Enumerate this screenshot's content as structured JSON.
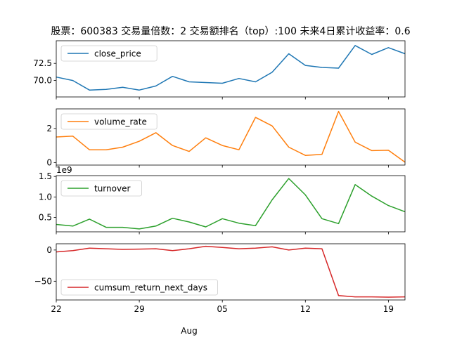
{
  "title": "股票：600383  交易量倍数：2 交易额排名（top）:100 未来4日累计收益率：0.6",
  "x_month_label": "Aug",
  "x_tick_labels": [
    "22",
    "29",
    "05",
    "12",
    "19"
  ],
  "x_tick_index": [
    0,
    5,
    10,
    15,
    20
  ],
  "chart_data": [
    {
      "type": "line",
      "x": [
        "Jul 22",
        "Jul 23",
        "Jul 24",
        "Jul 25",
        "Jul 26",
        "Jul 27",
        "Jul 28",
        "Jul 29",
        "Jul 30",
        "Jul 31",
        "Aug 01",
        "Aug 02",
        "Aug 03",
        "Aug 04",
        "Aug 05",
        "Aug 06",
        "Aug 07",
        "Aug 08",
        "Aug 09",
        "Aug 10",
        "Aug 11",
        "Aug 12"
      ],
      "series": [
        {
          "name": "close_price",
          "color": "#1f77b4",
          "values": [
            70.5,
            70.0,
            68.6,
            68.7,
            69.0,
            68.6,
            69.2,
            70.6,
            69.8,
            69.7,
            69.6,
            70.3,
            69.8,
            71.2,
            73.9,
            72.2,
            71.9,
            71.8,
            75.1,
            73.8,
            74.8,
            73.9
          ]
        }
      ],
      "ylim": [
        67.6,
        75.8
      ],
      "yticks": [
        70.0,
        72.5
      ],
      "ytick_labels": [
        "70.0",
        "72.5"
      ],
      "legend": "upper left",
      "grid": false
    },
    {
      "type": "line",
      "series": [
        {
          "name": "volume_rate",
          "color": "#ff7f0e",
          "values": [
            1.5,
            1.55,
            0.75,
            0.75,
            0.9,
            1.25,
            1.75,
            1.0,
            0.65,
            1.45,
            1.0,
            0.75,
            2.65,
            2.15,
            0.9,
            0.42,
            0.48,
            3.0,
            1.2,
            0.7,
            0.72,
            0.02
          ]
        }
      ],
      "ylim": [
        -0.15,
        3.15
      ],
      "yticks": [
        0,
        2
      ],
      "ytick_labels": [
        "0",
        "2"
      ],
      "legend": "upper left",
      "grid": false
    },
    {
      "type": "line",
      "series": [
        {
          "name": "turnover",
          "color": "#2ca02c",
          "values": [
            0.33,
            0.29,
            0.46,
            0.26,
            0.26,
            0.22,
            0.29,
            0.48,
            0.39,
            0.27,
            0.47,
            0.36,
            0.3,
            0.93,
            1.45,
            1.05,
            0.47,
            0.35,
            1.3,
            1.02,
            0.79,
            0.64
          ]
        }
      ],
      "ylim": [
        0.15,
        1.52
      ],
      "yticks": [
        0.5,
        1.0,
        1.5
      ],
      "ytick_labels": [
        "0.5",
        "1.0",
        "1.5"
      ],
      "offset_label": "1e9",
      "legend": "upper left",
      "grid": false
    },
    {
      "type": "line",
      "series": [
        {
          "name": "cumsum_return_next_days",
          "color": "#d62728",
          "values": [
            -3,
            -1,
            3,
            2,
            1,
            1.5,
            2,
            -1,
            2,
            6,
            4,
            2,
            3,
            5,
            0,
            3,
            2,
            -73,
            -75,
            -75,
            -75.5,
            -75
          ]
        }
      ],
      "ylim": [
        -80,
        10
      ],
      "yticks": [
        -50,
        0
      ],
      "ytick_labels": [
        "−50",
        "0"
      ],
      "legend": "lower left",
      "grid": false
    }
  ]
}
